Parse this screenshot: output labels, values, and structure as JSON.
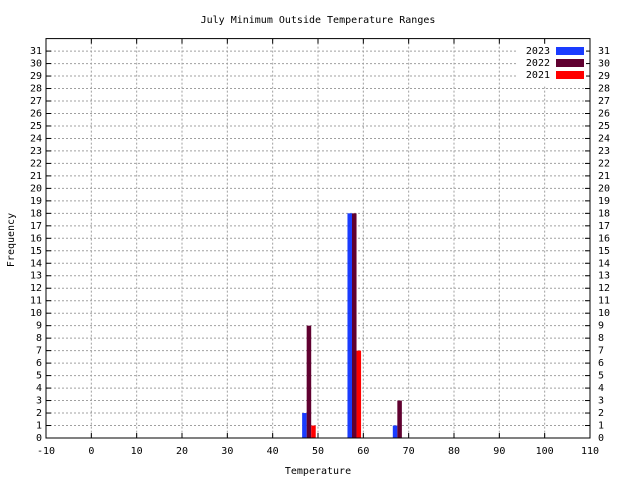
{
  "chart_data": {
    "type": "bar",
    "title": "July Minimum Outside Temperature Ranges",
    "x_label": "Temperature",
    "y_label": "Frequency",
    "x": [
      48,
      58,
      68
    ],
    "series": [
      {
        "name": "2023",
        "color": "#1a3cff",
        "values": [
          2,
          18,
          1
        ]
      },
      {
        "name": "2022",
        "color": "#600030",
        "values": [
          9,
          18,
          3
        ]
      },
      {
        "name": "2021",
        "color": "#ff0000",
        "values": [
          1,
          7,
          0
        ]
      }
    ],
    "xlim": [
      -10,
      110
    ],
    "xticks": [
      -10,
      0,
      10,
      20,
      30,
      40,
      50,
      60,
      70,
      80,
      90,
      100,
      110
    ],
    "ylim": [
      0,
      32
    ],
    "yticks": [
      0,
      1,
      2,
      3,
      4,
      5,
      6,
      7,
      8,
      9,
      10,
      11,
      12,
      13,
      14,
      15,
      16,
      17,
      18,
      19,
      20,
      21,
      22,
      23,
      24,
      25,
      26,
      27,
      28,
      29,
      30,
      31
    ],
    "grid": true,
    "legend": "top-right"
  }
}
